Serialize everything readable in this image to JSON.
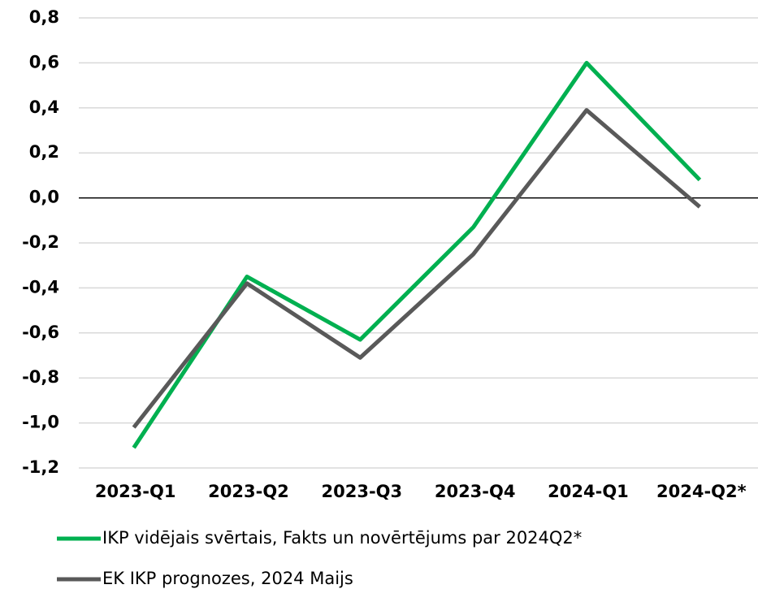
{
  "chart_data": {
    "type": "line",
    "categories": [
      "2023-Q1",
      "2023-Q2",
      "2023-Q3",
      "2023-Q4",
      "2024-Q1",
      "2024-Q2*"
    ],
    "series": [
      {
        "name": "IKP vidējais svērtais, Fakts un novērtējums par 2024Q2*",
        "color": "#00b050",
        "values": [
          -1.11,
          -0.35,
          -0.63,
          -0.13,
          0.6,
          0.08
        ]
      },
      {
        "name": "EK IKP prognozes, 2024 Maijs",
        "color": "#595959",
        "values": [
          -1.02,
          -0.38,
          -0.71,
          -0.25,
          0.39,
          -0.04
        ]
      }
    ],
    "ylim": [
      -1.2,
      0.8
    ],
    "yticks": [
      {
        "value": -1.2,
        "label": "-1,2"
      },
      {
        "value": -1.0,
        "label": "-1,0"
      },
      {
        "value": -0.8,
        "label": "-0,8"
      },
      {
        "value": -0.6,
        "label": "-0,6"
      },
      {
        "value": -0.4,
        "label": "-0,4"
      },
      {
        "value": -0.2,
        "label": "-0,2"
      },
      {
        "value": 0,
        "label": "0,0"
      },
      {
        "value": 0.2,
        "label": "0,2"
      },
      {
        "value": 0.4,
        "label": "0,4"
      },
      {
        "value": 0.6,
        "label": "0,6"
      },
      {
        "value": 0.8,
        "label": "0,8"
      }
    ],
    "grid": true
  }
}
